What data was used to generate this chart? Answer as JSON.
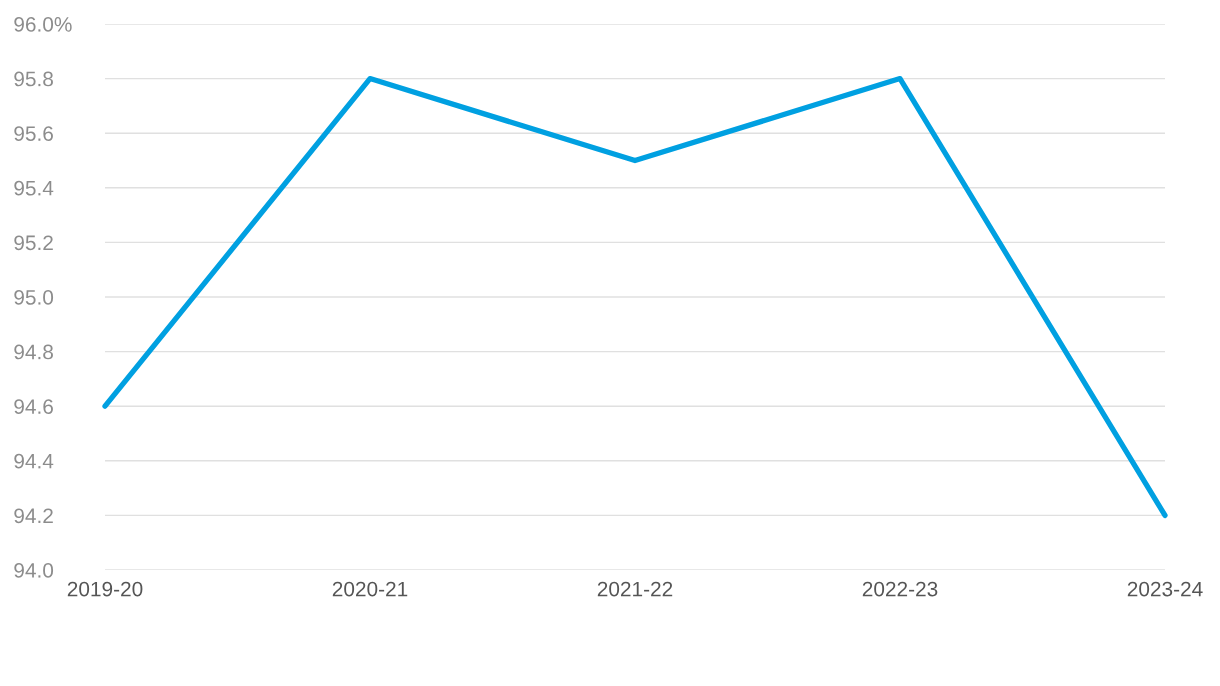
{
  "chart_data": {
    "type": "line",
    "categories": [
      "2019-20",
      "2020-21",
      "2021-22",
      "2022-23",
      "2023-24"
    ],
    "series": [
      {
        "color": "#00a0e1",
        "values": [
          94.6,
          95.8,
          95.5,
          95.8,
          94.2
        ]
      }
    ],
    "ylim": [
      94.0,
      96.0
    ],
    "yticks": [
      {
        "value": 94.0,
        "label": "94.0"
      },
      {
        "value": 94.2,
        "label": "94.2"
      },
      {
        "value": 94.4,
        "label": "94.4"
      },
      {
        "value": 94.6,
        "label": "94.6"
      },
      {
        "value": 94.8,
        "label": "94.8"
      },
      {
        "value": 95.0,
        "label": "95.0"
      },
      {
        "value": 95.2,
        "label": "95.2"
      },
      {
        "value": 95.4,
        "label": "95.4"
      },
      {
        "value": 95.6,
        "label": "95.6"
      },
      {
        "value": 95.8,
        "label": "95.8"
      },
      {
        "value": 96.0,
        "label": "96.0%"
      }
    ],
    "grid": "y",
    "legend": false,
    "marker": "none",
    "line_style": "solid"
  }
}
